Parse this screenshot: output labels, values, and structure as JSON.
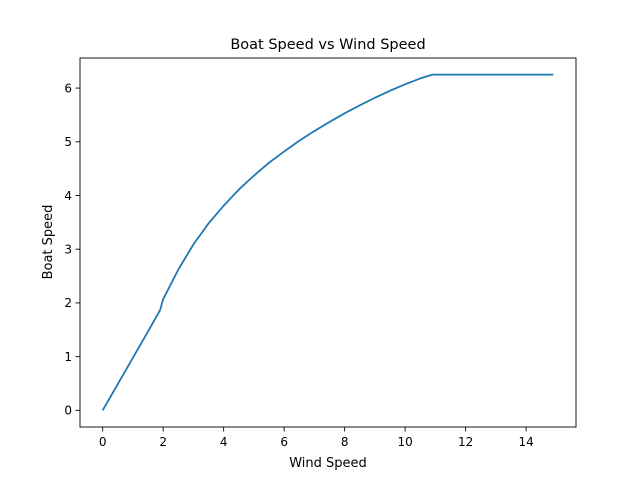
{
  "chart_data": {
    "type": "line",
    "title": "Boat Speed vs Wind Speed",
    "xlabel": "Wind Speed",
    "ylabel": "Boat Speed",
    "xlim": [
      -0.75,
      15.65
    ],
    "ylim": [
      -0.31,
      6.56
    ],
    "xticks": [
      0,
      2,
      4,
      6,
      8,
      10,
      12,
      14
    ],
    "yticks": [
      0,
      1,
      2,
      3,
      4,
      5,
      6
    ],
    "grid": false,
    "legend": "none",
    "color": "#1f77b4",
    "series": [
      {
        "x": [
          0,
          0.5,
          1.0,
          1.5,
          1.9,
          2.0,
          2.5,
          3.0,
          3.5,
          4.0,
          4.5,
          5.0,
          5.5,
          6.0,
          6.5,
          7.0,
          7.5,
          8.0,
          8.5,
          9.0,
          9.5,
          10.0,
          10.5,
          10.9,
          11.0,
          12.0,
          13.0,
          14.0,
          14.9
        ],
        "y": [
          0,
          0.49,
          0.98,
          1.47,
          1.87,
          2.07,
          2.62,
          3.09,
          3.48,
          3.81,
          4.11,
          4.37,
          4.61,
          4.82,
          5.02,
          5.2,
          5.37,
          5.53,
          5.68,
          5.82,
          5.95,
          6.07,
          6.18,
          6.25,
          6.25,
          6.25,
          6.25,
          6.25,
          6.25
        ]
      }
    ]
  }
}
